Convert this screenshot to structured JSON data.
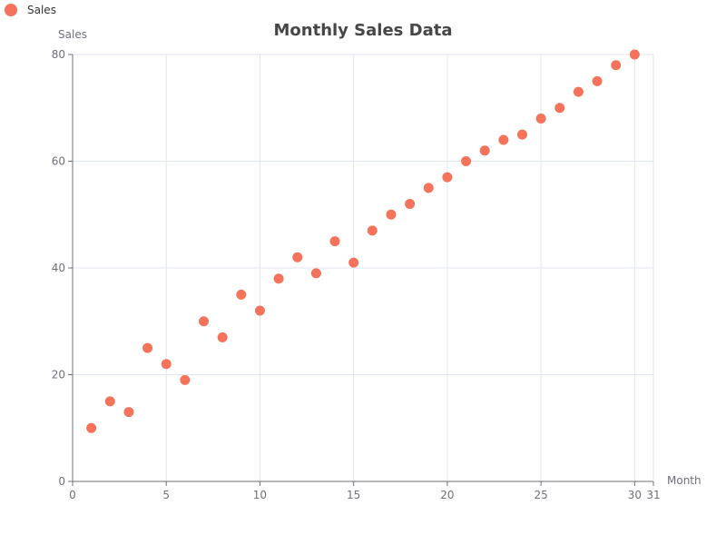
{
  "chart_data": {
    "type": "scatter",
    "title": "Monthly Sales Data",
    "xlabel": "Month",
    "ylabel": "Sales",
    "xlim": [
      0,
      31
    ],
    "ylim": [
      0,
      80
    ],
    "x_ticks": [
      0,
      5,
      10,
      15,
      20,
      25,
      30,
      31
    ],
    "y_ticks": [
      0,
      20,
      40,
      60,
      80
    ],
    "grid": true,
    "legend": {
      "position": "top-left",
      "entries": [
        "Sales"
      ]
    },
    "series": [
      {
        "name": "Sales",
        "color": "#f4735a",
        "points": [
          [
            1,
            10
          ],
          [
            2,
            15
          ],
          [
            3,
            13
          ],
          [
            4,
            25
          ],
          [
            5,
            22
          ],
          [
            6,
            19
          ],
          [
            7,
            30
          ],
          [
            8,
            27
          ],
          [
            9,
            35
          ],
          [
            10,
            32
          ],
          [
            11,
            38
          ],
          [
            12,
            42
          ],
          [
            13,
            39
          ],
          [
            14,
            45
          ],
          [
            15,
            41
          ],
          [
            16,
            47
          ],
          [
            17,
            50
          ],
          [
            18,
            52
          ],
          [
            19,
            55
          ],
          [
            20,
            57
          ],
          [
            21,
            60
          ],
          [
            22,
            62
          ],
          [
            23,
            64
          ],
          [
            24,
            65
          ],
          [
            25,
            68
          ],
          [
            26,
            70
          ],
          [
            27,
            73
          ],
          [
            28,
            75
          ],
          [
            29,
            78
          ],
          [
            30,
            80
          ]
        ]
      }
    ]
  }
}
